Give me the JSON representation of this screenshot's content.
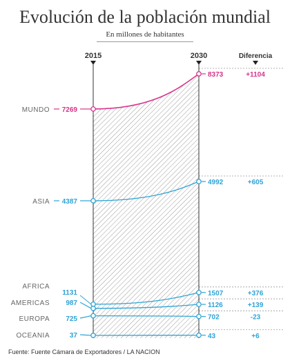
{
  "title": "Evolución de la población mundial",
  "subtitle": "En millones de habitantes",
  "source": "Fuente: Fuente Cámara de Exportadores / LA NACION",
  "colors": {
    "mundo": "#d6338a",
    "regions": "#2ea3d6",
    "text": "#333333"
  },
  "chart_data": {
    "type": "line",
    "x": [
      "2015",
      "2030"
    ],
    "diff_header": "Diferencia",
    "series": [
      {
        "name": "MUNDO",
        "v2015": "7269",
        "v2030": "8373",
        "diff": "+1104",
        "highlight": true
      },
      {
        "name": "ASIA",
        "v2015": "4387",
        "v2030": "4992",
        "diff": "+605"
      },
      {
        "name": "AFRICA",
        "v2015": "1131",
        "v2030": "1507",
        "diff": "+376"
      },
      {
        "name": "AMERICAS",
        "v2015": "987",
        "v2030": "1126",
        "diff": "+139"
      },
      {
        "name": "EUROPA",
        "v2015": "725",
        "v2030": "702",
        "diff": "-23"
      },
      {
        "name": "OCEANIA",
        "v2015": "37",
        "v2030": "43",
        "diff": "+6"
      }
    ]
  }
}
